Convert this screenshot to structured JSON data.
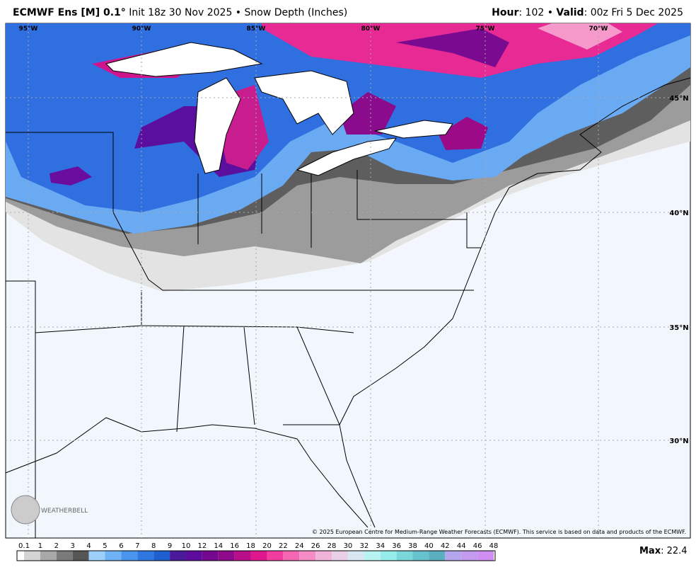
{
  "header": {
    "left_bold": "ECMWF Ens [M] 0.1°",
    "left_text": "Init 18z 30 Nov 2025 • Snow Depth (Inches)",
    "hour_label": "Hour",
    "hour_text": ": 102 • ",
    "valid_label": "Valid",
    "valid_text": ": 00z Fri 5 Dec 2025"
  },
  "map": {
    "lon_labels": [
      "95°W",
      "90°W",
      "85°W",
      "80°W",
      "75°W",
      "70°W"
    ],
    "lat_labels": [
      "45°N",
      "40°N",
      "35°N",
      "30°N"
    ],
    "logo": "WEATHERBELL",
    "copyright": "© 2025 European Centre for Medium-Range Weather Forecasts (ECMWF). This service is based on data and products of the ECMWF."
  },
  "colorbar": {
    "labels": [
      "0.1",
      "1",
      "2",
      "3",
      "4",
      "5",
      "6",
      "7",
      "8",
      "9",
      "10",
      "12",
      "14",
      "16",
      "18",
      "20",
      "22",
      "24",
      "26",
      "28",
      "30",
      "32",
      "34",
      "36",
      "38",
      "40",
      "42",
      "44",
      "46",
      "48"
    ],
    "colors": [
      "#d4d4d4",
      "#a8a8a8",
      "#7a7a7a",
      "#565656",
      "#9ccffb",
      "#6fb2f5",
      "#4a95ee",
      "#2f78e2",
      "#1f5fd0",
      "#4b1a9a",
      "#5e0c9e",
      "#74088f",
      "#8f0a8a",
      "#b80e8a",
      "#e0188f",
      "#f03d9f",
      "#f566b3",
      "#f58cc6",
      "#f2b3d8",
      "#e9d0e6",
      "#d8e6f2",
      "#b8f2f2",
      "#96ecea",
      "#7ad8dc",
      "#66c2cc",
      "#5aaec0",
      "#b4a6ec",
      "#c49af0",
      "#d08ef2"
    ]
  },
  "max": {
    "label": "Max",
    "text": ": 22.4"
  }
}
